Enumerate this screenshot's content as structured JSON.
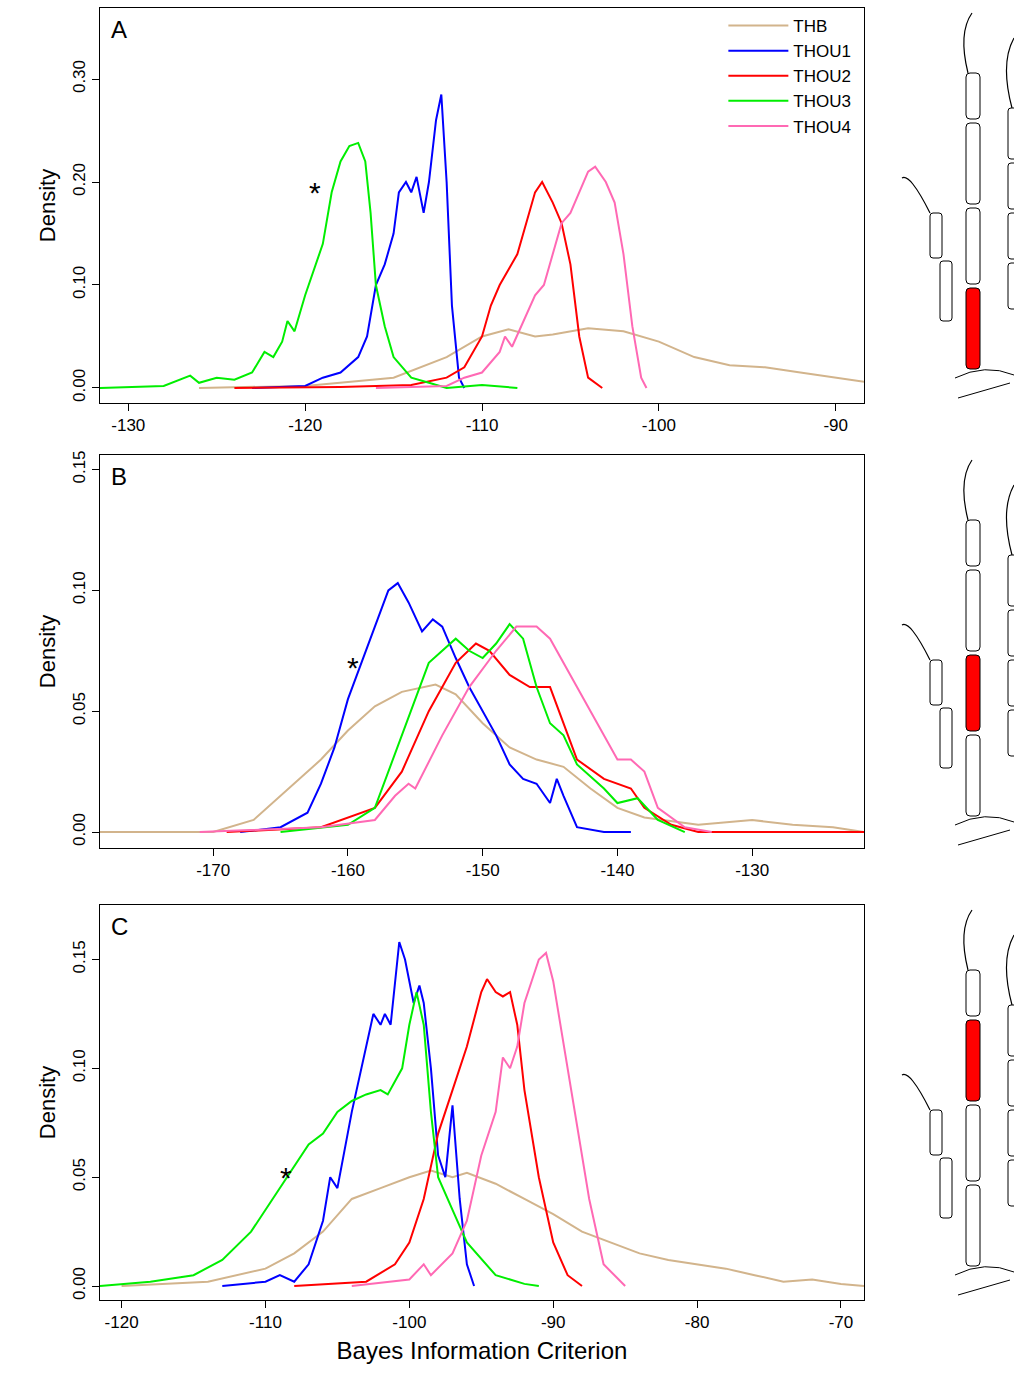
{
  "chart_data": [
    {
      "type": "line",
      "title": "A",
      "ylabel": "Density",
      "xlim": [
        -131.6,
        -88.4
      ],
      "xticks": [
        -130,
        -120,
        -110,
        -100,
        -90
      ],
      "ylim": [
        -0.0146,
        0.369
      ],
      "yticks": [
        {
          "value": 0,
          "label": "0.00"
        },
        {
          "value": 0.1,
          "label": "0.10"
        },
        {
          "value": 0.2,
          "label": "0.20"
        },
        {
          "value": 0.3,
          "label": "0.30"
        }
      ],
      "grid": false,
      "legend": "top right",
      "annotations": [
        {
          "text": "*",
          "x": -119,
          "y": 0.19
        }
      ],
      "series": [
        {
          "name": "THB",
          "color": "#d2b48c",
          "x": [
            -126,
            -120,
            -115,
            -112,
            -110,
            -108.5,
            -107,
            -106,
            -104,
            -102,
            -100,
            -98,
            -96,
            -94,
            -92,
            -90,
            -88.4
          ],
          "values": [
            0,
            0.002,
            0.01,
            0.03,
            0.05,
            0.057,
            0.05,
            0.052,
            0.058,
            0.055,
            0.045,
            0.03,
            0.022,
            0.02,
            0.015,
            0.01,
            0.006
          ]
        },
        {
          "name": "THOU1",
          "color": "#0000ff",
          "x": [
            -123,
            -120,
            -119,
            -118,
            -117,
            -116.5,
            -116,
            -115.5,
            -115,
            -114.7,
            -114.3,
            -114,
            -113.7,
            -113.3,
            -113,
            -112.6,
            -112.3,
            -112,
            -111.7,
            -111.3,
            -111
          ],
          "values": [
            0,
            0.002,
            0.01,
            0.015,
            0.03,
            0.05,
            0.1,
            0.12,
            0.15,
            0.19,
            0.2,
            0.19,
            0.205,
            0.17,
            0.2,
            0.26,
            0.285,
            0.2,
            0.08,
            0.01,
            0
          ]
        },
        {
          "name": "THOU2",
          "color": "#ff0000",
          "x": [
            -124,
            -118,
            -114,
            -112,
            -111,
            -110,
            -109.5,
            -109,
            -108,
            -107.5,
            -107,
            -106.6,
            -106,
            -105.5,
            -105,
            -104.5,
            -104,
            -103.2
          ],
          "values": [
            0,
            0.001,
            0.003,
            0.01,
            0.02,
            0.05,
            0.08,
            0.1,
            0.13,
            0.16,
            0.19,
            0.2,
            0.18,
            0.16,
            0.12,
            0.05,
            0.01,
            0
          ]
        },
        {
          "name": "THOU3",
          "color": "#00ee00",
          "x": [
            -131.6,
            -128,
            -126.5,
            -126,
            -125,
            -124,
            -123,
            -122.3,
            -121.8,
            -121.3,
            -121,
            -120.6,
            -120,
            -119,
            -118.5,
            -118,
            -117.5,
            -117,
            -116.6,
            -116.3,
            -116,
            -115.5,
            -115,
            -114,
            -113,
            -112,
            -110,
            -108
          ],
          "values": [
            0,
            0.002,
            0.012,
            0.005,
            0.01,
            0.008,
            0.015,
            0.035,
            0.03,
            0.045,
            0.065,
            0.055,
            0.09,
            0.14,
            0.19,
            0.22,
            0.235,
            0.238,
            0.22,
            0.17,
            0.1,
            0.06,
            0.03,
            0.01,
            0.005,
            0,
            0.003,
            0
          ]
        },
        {
          "name": "THOU4",
          "color": "#ff69b4",
          "x": [
            -116,
            -112,
            -111,
            -110,
            -109,
            -108.7,
            -108.3,
            -107.5,
            -107,
            -106.5,
            -106,
            -105.5,
            -105,
            -104.5,
            -104,
            -103.6,
            -103,
            -102.5,
            -102,
            -101.5,
            -101,
            -100.7
          ],
          "values": [
            0,
            0.002,
            0.01,
            0.015,
            0.035,
            0.05,
            0.04,
            0.07,
            0.09,
            0.1,
            0.13,
            0.16,
            0.17,
            0.19,
            0.21,
            0.215,
            0.2,
            0.18,
            0.13,
            0.06,
            0.01,
            0
          ]
        }
      ]
    },
    {
      "type": "line",
      "title": "B",
      "ylabel": "Density",
      "xlim": [
        -178.4,
        -121.7
      ],
      "xticks": [
        -170,
        -160,
        -150,
        -140,
        -130
      ],
      "ylim": [
        -0.0066,
        0.156
      ],
      "yticks": [
        {
          "value": 0,
          "label": "0.00"
        },
        {
          "value": 0.05,
          "label": "0.05"
        },
        {
          "value": 0.1,
          "label": "0.10"
        },
        {
          "value": 0.15,
          "label": "0.15"
        }
      ],
      "grid": false,
      "annotations": [
        {
          "text": "*",
          "x": -159,
          "y": 0.068
        }
      ],
      "series": [
        {
          "name": "THB",
          "color": "#d2b48c",
          "x": [
            -178.4,
            -170,
            -167,
            -165,
            -162,
            -160,
            -158,
            -156,
            -153.5,
            -152,
            -150,
            -148,
            -146,
            -144,
            -142,
            -140,
            -138,
            -134,
            -130,
            -127,
            -124,
            -121.7
          ],
          "values": [
            0,
            0,
            0.005,
            0.015,
            0.03,
            0.042,
            0.052,
            0.058,
            0.061,
            0.057,
            0.045,
            0.035,
            0.03,
            0.027,
            0.018,
            0.01,
            0.006,
            0.003,
            0.005,
            0.003,
            0.002,
            0
          ]
        },
        {
          "name": "THOU1",
          "color": "#0000ff",
          "x": [
            -168,
            -165,
            -163,
            -162,
            -161,
            -160,
            -159,
            -158,
            -157,
            -156.3,
            -155.5,
            -154.5,
            -153.7,
            -153,
            -152,
            -151,
            -150,
            -149,
            -148,
            -147,
            -146,
            -145,
            -144.5,
            -144,
            -143,
            -141,
            -139
          ],
          "values": [
            0,
            0.002,
            0.008,
            0.02,
            0.035,
            0.055,
            0.07,
            0.085,
            0.1,
            0.103,
            0.095,
            0.083,
            0.088,
            0.085,
            0.072,
            0.06,
            0.05,
            0.04,
            0.028,
            0.022,
            0.02,
            0.012,
            0.022,
            0.015,
            0.002,
            0,
            0
          ]
        },
        {
          "name": "THOU2",
          "color": "#ff0000",
          "x": [
            -169,
            -162,
            -158,
            -156,
            -154,
            -152,
            -150.5,
            -149.5,
            -148,
            -146.5,
            -145,
            -144,
            -143,
            -141,
            -139,
            -138,
            -136,
            -134,
            -121.7
          ],
          "values": [
            0,
            0.002,
            0.01,
            0.025,
            0.05,
            0.07,
            0.078,
            0.075,
            0.065,
            0.06,
            0.06,
            0.045,
            0.03,
            0.022,
            0.018,
            0.01,
            0.003,
            0,
            0
          ]
        },
        {
          "name": "THOU3",
          "color": "#00ee00",
          "x": [
            -165,
            -160,
            -158,
            -156,
            -154,
            -152,
            -151,
            -150,
            -149,
            -148,
            -147,
            -146,
            -145,
            -144,
            -143,
            -141,
            -140,
            -138.5,
            -137,
            -135
          ],
          "values": [
            0,
            0.003,
            0.01,
            0.04,
            0.07,
            0.08,
            0.075,
            0.072,
            0.078,
            0.086,
            0.08,
            0.06,
            0.045,
            0.04,
            0.028,
            0.018,
            0.012,
            0.014,
            0.005,
            0
          ]
        },
        {
          "name": "THOU4",
          "color": "#ff69b4",
          "x": [
            -171,
            -162,
            -158,
            -156.5,
            -155.5,
            -155,
            -153,
            -151,
            -149,
            -147.5,
            -146,
            -145,
            -143,
            -141,
            -140,
            -139,
            -138,
            -137,
            -135,
            -133
          ],
          "values": [
            0,
            0.002,
            0.005,
            0.015,
            0.02,
            0.018,
            0.04,
            0.06,
            0.075,
            0.085,
            0.085,
            0.08,
            0.06,
            0.04,
            0.03,
            0.03,
            0.025,
            0.01,
            0.002,
            0
          ]
        }
      ]
    },
    {
      "type": "line",
      "title": "C",
      "ylabel": "Density",
      "xlabel": "Bayes Information Criterion",
      "xlim": [
        -121.5,
        -68.4
      ],
      "xticks": [
        -120,
        -110,
        -100,
        -90,
        -80,
        -70
      ],
      "ylim": [
        -0.0064,
        0.175
      ],
      "yticks": [
        {
          "value": 0,
          "label": "0.00"
        },
        {
          "value": 0.05,
          "label": "0.05"
        },
        {
          "value": 0.1,
          "label": "0.10"
        },
        {
          "value": 0.15,
          "label": "0.15"
        }
      ],
      "grid": false,
      "annotations": [
        {
          "text": "*",
          "x": -108,
          "y": 0.05
        }
      ],
      "series": [
        {
          "name": "THB",
          "color": "#d2b48c",
          "x": [
            -120,
            -114,
            -110,
            -108,
            -106,
            -104,
            -102,
            -100,
            -98.5,
            -97,
            -96,
            -94,
            -92,
            -90,
            -88,
            -86,
            -84,
            -82,
            -80,
            -78,
            -76,
            -74,
            -72,
            -70,
            -68.4
          ],
          "values": [
            0,
            0.002,
            0.008,
            0.015,
            0.025,
            0.04,
            0.045,
            0.05,
            0.053,
            0.05,
            0.052,
            0.047,
            0.04,
            0.033,
            0.025,
            0.02,
            0.015,
            0.012,
            0.01,
            0.008,
            0.005,
            0.002,
            0.003,
            0.001,
            0
          ]
        },
        {
          "name": "THOU1",
          "color": "#0000ff",
          "x": [
            -113,
            -110,
            -109,
            -108,
            -107,
            -106,
            -105.5,
            -105,
            -104,
            -103,
            -102.5,
            -102,
            -101.7,
            -101.3,
            -100.7,
            -100.3,
            -99.7,
            -99.3,
            -99,
            -98.5,
            -98,
            -97.5,
            -97,
            -96.5,
            -96,
            -95.5
          ],
          "values": [
            0,
            0.002,
            0.005,
            0.002,
            0.01,
            0.03,
            0.05,
            0.045,
            0.08,
            0.11,
            0.125,
            0.12,
            0.125,
            0.12,
            0.158,
            0.15,
            0.13,
            0.138,
            0.13,
            0.1,
            0.06,
            0.05,
            0.083,
            0.04,
            0.01,
            0
          ]
        },
        {
          "name": "THOU2",
          "color": "#ff0000",
          "x": [
            -108,
            -103,
            -101,
            -100,
            -99,
            -98,
            -97,
            -96,
            -95,
            -94.6,
            -94,
            -93.5,
            -93,
            -92.5,
            -92,
            -91,
            -90,
            -89,
            -88
          ],
          "values": [
            0,
            0.002,
            0.01,
            0.02,
            0.04,
            0.07,
            0.09,
            0.11,
            0.135,
            0.141,
            0.135,
            0.133,
            0.135,
            0.12,
            0.09,
            0.05,
            0.02,
            0.005,
            0
          ]
        },
        {
          "name": "THOU3",
          "color": "#00ee00",
          "x": [
            -121.5,
            -118,
            -115,
            -113,
            -111,
            -109,
            -108,
            -107,
            -106,
            -105,
            -104,
            -103,
            -102,
            -101.5,
            -100.5,
            -100,
            -99.5,
            -99,
            -98.5,
            -98,
            -97,
            -96,
            -94,
            -92,
            -91
          ],
          "values": [
            0,
            0.002,
            0.005,
            0.012,
            0.025,
            0.045,
            0.055,
            0.065,
            0.07,
            0.08,
            0.085,
            0.088,
            0.09,
            0.088,
            0.1,
            0.12,
            0.135,
            0.12,
            0.08,
            0.05,
            0.035,
            0.02,
            0.005,
            0.001,
            0
          ]
        },
        {
          "name": "THOU4",
          "color": "#ff69b4",
          "x": [
            -104,
            -100,
            -99,
            -98.5,
            -97,
            -96,
            -95,
            -94,
            -93.5,
            -93,
            -92.5,
            -92,
            -91,
            -90.5,
            -90,
            -89,
            -88.5,
            -87.5,
            -86.5,
            -85
          ],
          "values": [
            0,
            0.003,
            0.01,
            0.005,
            0.015,
            0.03,
            0.06,
            0.08,
            0.105,
            0.1,
            0.11,
            0.13,
            0.15,
            0.153,
            0.14,
            0.1,
            0.08,
            0.04,
            0.01,
            0
          ]
        }
      ]
    }
  ]
}
